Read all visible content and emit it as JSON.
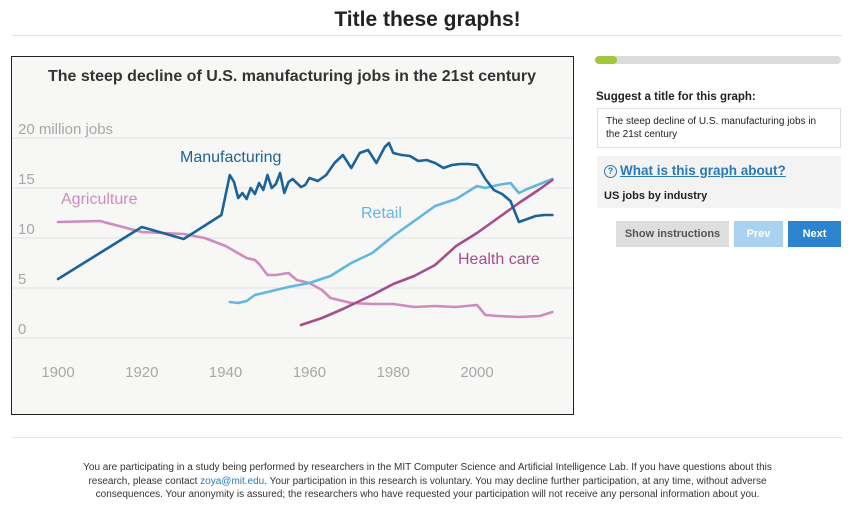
{
  "page": {
    "title": "Title these graphs!"
  },
  "progress": {
    "fraction": 0.09
  },
  "form": {
    "label": "Suggest a title for this graph:",
    "title_value": "The steep decline of U.S. manufacturing jobs in the 21st century"
  },
  "about": {
    "icon": "question-circle-icon",
    "link_text": "What is this graph about?",
    "description": "US jobs by industry"
  },
  "buttons": {
    "instructions": "Show instructions",
    "prev": "Prev",
    "next": "Next"
  },
  "footer": {
    "text_before": "You are participating in a study being performed by researchers in the MIT Computer Science and Artificial Intelligence Lab. If you have questions about this research, please contact ",
    "email": "zoya@mit.edu",
    "text_after": ". Your participation in this research is voluntary. You may decline further participation, at any time, without adverse consequences. Your anonymity is assured; the researchers who have requested your participation will not receive any personal information about you."
  },
  "colors": {
    "manufacturing": "#1c6399",
    "retail": "#63b6e0",
    "agriculture": "#d08bbd",
    "health_care": "#a64d8c",
    "progress": "#a3c43b",
    "link": "#2a7ab8"
  },
  "chart_data": {
    "type": "line",
    "title": "The steep decline of U.S. manufacturing jobs in the 21st century",
    "xlabel": "",
    "ylabel": "",
    "y_unit_label": "20 million jobs",
    "xlim": [
      1895,
      2020
    ],
    "ylim": [
      -1,
      21
    ],
    "x_ticks": [
      1900,
      1920,
      1940,
      1960,
      1980,
      2000
    ],
    "y_ticks": [
      0,
      5,
      10,
      15,
      20
    ],
    "y_tick_labels": [
      "0",
      "5",
      "10",
      "15",
      "20 million jobs"
    ],
    "series": [
      {
        "name": "Manufacturing",
        "color_key": "manufacturing",
        "x": [
          1900,
          1910,
          1920,
          1930,
          1939,
          1941,
          1942,
          1943,
          1944,
          1945,
          1946,
          1947,
          1948,
          1949,
          1950,
          1951,
          1952,
          1953,
          1954,
          1955,
          1956,
          1957,
          1958,
          1959,
          1960,
          1962,
          1964,
          1966,
          1968,
          1970,
          1972,
          1974,
          1976,
          1978,
          1979,
          1980,
          1982,
          1984,
          1986,
          1988,
          1990,
          1992,
          1994,
          1996,
          1998,
          2000,
          2002,
          2004,
          2006,
          2008,
          2010,
          2012,
          2014,
          2016,
          2018
        ],
        "y": [
          5.9,
          8.5,
          11.1,
          9.9,
          12.3,
          16.3,
          15.6,
          14.0,
          14.5,
          13.9,
          15.0,
          14.4,
          15.5,
          14.8,
          16.3,
          15.0,
          15.4,
          16.5,
          14.5,
          15.6,
          15.9,
          15.5,
          15.1,
          15.3,
          16.0,
          15.7,
          16.3,
          17.5,
          18.3,
          17.0,
          18.5,
          18.8,
          17.5,
          19.1,
          19.5,
          18.5,
          18.3,
          18.2,
          17.7,
          17.8,
          17.5,
          17.0,
          17.3,
          17.4,
          17.4,
          17.3,
          15.9,
          14.8,
          14.4,
          13.7,
          11.6,
          11.9,
          12.2,
          12.3,
          12.3
        ]
      },
      {
        "name": "Retail",
        "color_key": "retail",
        "x": [
          1941,
          1943,
          1945,
          1947,
          1950,
          1955,
          1960,
          1965,
          1970,
          1975,
          1980,
          1985,
          1990,
          1995,
          2000,
          2002,
          2005,
          2008,
          2010,
          2012,
          2015,
          2018
        ],
        "y": [
          3.6,
          3.5,
          3.7,
          4.3,
          4.6,
          5.1,
          5.5,
          6.2,
          7.5,
          8.5,
          10.2,
          11.7,
          13.2,
          13.9,
          15.2,
          15.0,
          15.3,
          15.5,
          14.5,
          14.9,
          15.4,
          15.9
        ]
      },
      {
        "name": "Agriculture",
        "color_key": "agriculture",
        "x": [
          1900,
          1910,
          1920,
          1930,
          1935,
          1940,
          1945,
          1947,
          1948,
          1950,
          1952,
          1955,
          1957,
          1960,
          1963,
          1965,
          1970,
          1975,
          1980,
          1985,
          1990,
          1995,
          2000,
          2002,
          2005,
          2010,
          2015,
          2018
        ],
        "y": [
          11.6,
          11.7,
          10.6,
          10.4,
          10.0,
          9.2,
          8.0,
          7.8,
          7.4,
          6.3,
          6.3,
          6.5,
          5.8,
          5.5,
          4.8,
          4.0,
          3.5,
          3.4,
          3.4,
          3.1,
          3.2,
          3.1,
          3.3,
          2.3,
          2.2,
          2.1,
          2.2,
          2.6
        ]
      },
      {
        "name": "Health care",
        "color_key": "health_care",
        "x": [
          1958,
          1963,
          1968,
          1975,
          1980,
          1985,
          1990,
          1995,
          2000,
          2005,
          2010,
          2015,
          2018
        ],
        "y": [
          1.3,
          2.0,
          2.9,
          4.3,
          5.4,
          6.2,
          7.3,
          9.2,
          10.5,
          12.0,
          13.5,
          14.9,
          15.8
        ]
      }
    ]
  }
}
